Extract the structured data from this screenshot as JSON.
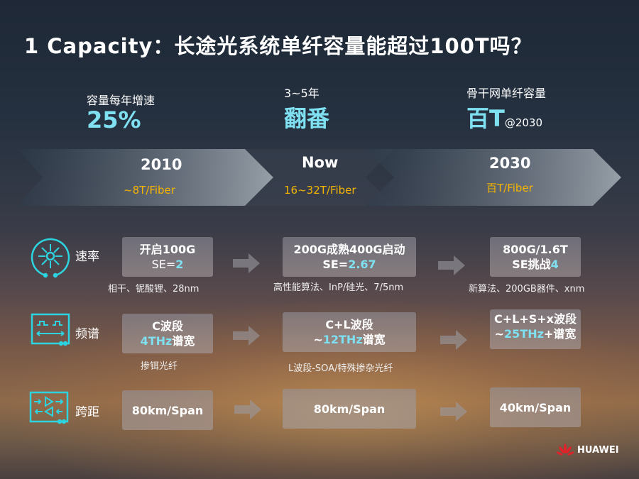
{
  "title": "1 Capacity：长途光系统单纤容量能超过100T吗？",
  "stats": [
    {
      "label": "容量每年增速",
      "value": "25%"
    },
    {
      "label": "3~5年",
      "value": "翻番"
    },
    {
      "label": "骨干网单纤容量",
      "value": "百T",
      "suffix": "@2030"
    }
  ],
  "timeline": [
    {
      "year": "2010",
      "capacity": "~8T/Fiber"
    },
    {
      "year": "Now",
      "capacity": "16~32T/Fiber"
    },
    {
      "year": "2030",
      "capacity": "百T/Fiber"
    }
  ],
  "rows": [
    {
      "label": "速率",
      "icon": "laser-burst-icon",
      "cells": [
        {
          "line1": "开启100G",
          "line2_prefix": "SE=",
          "line2_value": "2",
          "line2_suffix": "",
          "note": "相干、铌酸锂、28nm"
        },
        {
          "line1": "200G成熟400G启动",
          "line2_prefix": "SE=",
          "line2_value": "2.67",
          "line2_suffix": "",
          "note": "高性能算法、InP/硅光、7/5nm"
        },
        {
          "line1": "800G/1.6T",
          "line2_prefix": "SE挑战",
          "line2_value": "4",
          "line2_suffix": "",
          "note": "新算法、200GB器件、xnm"
        }
      ]
    },
    {
      "label": "频谱",
      "icon": "spectrum-icon",
      "cells": [
        {
          "line1": "C波段",
          "line2_prefix": "",
          "line2_value": "4THz",
          "line2_suffix": "谱宽",
          "note": "掺铒光纤"
        },
        {
          "line1": "C+L波段",
          "line2_prefix": "~",
          "line2_value": "12THz",
          "line2_suffix": "谱宽",
          "note": "L波段-SOA/特殊掺杂光纤"
        },
        {
          "line1": "C+L+S+x波段",
          "line2_prefix": "~",
          "line2_value": "25THz",
          "line2_suffix": "+谱宽",
          "note": ""
        }
      ]
    },
    {
      "label": "跨距",
      "icon": "amplifier-icon",
      "cells": [
        {
          "line1": "80km/Span"
        },
        {
          "line1": "80km/Span"
        },
        {
          "line1": "40km/Span"
        }
      ]
    }
  ],
  "brand": "HUAWEI",
  "colors": {
    "accent": "#7ee0f0",
    "highlight": "#f5b400",
    "icon": "#2cd4e0"
  }
}
